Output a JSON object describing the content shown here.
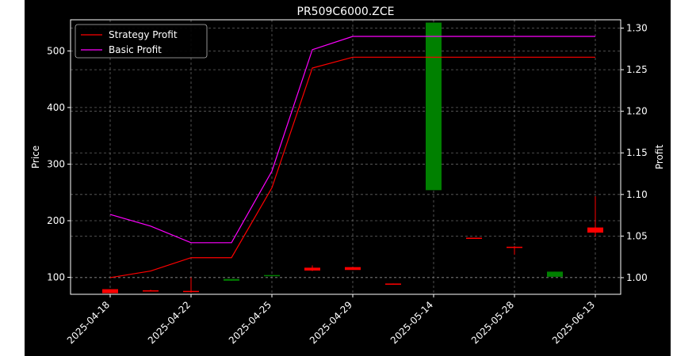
{
  "chart_data": {
    "type": "candlestick",
    "title": "PR509C6000.ZCE",
    "xlabel": "",
    "ylabel": "Price",
    "y2label": "Profit",
    "grid": true,
    "legend_position": "top-left",
    "ylim": [
      70,
      555
    ],
    "y2lim": [
      0.98,
      1.31
    ],
    "y_ticks": [
      100,
      200,
      300,
      400,
      500
    ],
    "y2_ticks": [
      "1.00",
      "1.05",
      "1.10",
      "1.15",
      "1.20",
      "1.25",
      "1.30"
    ],
    "x_tick_labels": [
      "2025-04-18",
      "2025-04-22",
      "2025-04-25",
      "2025-04-29",
      "2025-05-14",
      "2025-05-28",
      "2025-06-13"
    ],
    "x_tick_index": [
      0,
      2,
      4,
      6,
      8,
      10,
      12
    ],
    "colors": {
      "up": "#008000",
      "down": "#ff0000",
      "strategy": "#ff0000",
      "basic": "#ff00ff"
    },
    "candles": [
      {
        "open": 79,
        "close": 72,
        "high": 79,
        "low": 72
      },
      {
        "open": 77,
        "close": 76,
        "high": 78,
        "low": 75
      },
      {
        "open": 76,
        "close": 74,
        "high": 100,
        "low": 73
      },
      {
        "open": 94,
        "close": 97,
        "high": 97,
        "low": 94
      },
      {
        "open": 102,
        "close": 104,
        "high": 104,
        "low": 102
      },
      {
        "open": 117,
        "close": 112,
        "high": 121,
        "low": 111
      },
      {
        "open": 118,
        "close": 113,
        "high": 118,
        "low": 113
      },
      {
        "open": 89,
        "close": 88,
        "high": 89,
        "low": 88
      },
      {
        "open": 254,
        "close": 550,
        "high": 550,
        "low": 254
      },
      {
        "open": 170,
        "close": 169,
        "high": 170,
        "low": 169
      },
      {
        "open": 154,
        "close": 152,
        "high": 155,
        "low": 140
      },
      {
        "open": 101,
        "close": 110,
        "high": 110,
        "low": 101
      },
      {
        "open": 188,
        "close": 179,
        "high": 243,
        "low": 172
      }
    ],
    "series": [
      {
        "name": "Strategy Profit",
        "values": [
          1.0,
          1.008,
          1.024,
          1.024,
          1.108,
          1.252,
          1.265,
          1.265,
          1.265,
          1.265,
          1.265,
          1.265,
          1.265
        ]
      },
      {
        "name": "Basic Profit",
        "values": [
          1.076,
          1.062,
          1.042,
          1.042,
          1.128,
          1.274,
          1.29,
          1.29,
          1.29,
          1.29,
          1.29,
          1.29,
          1.29
        ]
      }
    ]
  }
}
